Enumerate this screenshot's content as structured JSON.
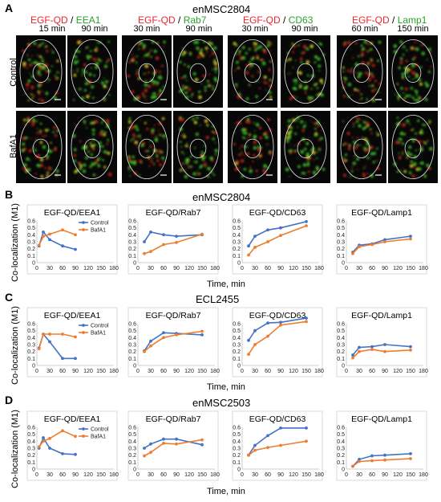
{
  "panels": {
    "A": "A",
    "B": "B",
    "C": "C",
    "D": "D"
  },
  "panelA": {
    "title": "enMSC2804",
    "row_labels": [
      "Control",
      "BafA1"
    ],
    "columns": [
      {
        "red": "EGF-QD",
        "sep": " / ",
        "green": "EEA1",
        "times": [
          "15 min",
          "90 min"
        ]
      },
      {
        "red": "EGF-QD",
        "sep": " / ",
        "green": "Rab7",
        "times": [
          "30 min",
          "90 min"
        ]
      },
      {
        "red": "EGF-QD",
        "sep": " / ",
        "green": "CD63",
        "times": [
          "30 min",
          "90 min"
        ]
      },
      {
        "red": "EGF-QD",
        "sep": " / ",
        "green": "Lamp1",
        "times": [
          "60 min",
          "150 min"
        ]
      }
    ]
  },
  "sections": [
    {
      "letter": "B",
      "title": "enMSC2804"
    },
    {
      "letter": "C",
      "title": "ECL2455"
    },
    {
      "letter": "D",
      "title": "enMSC2503"
    }
  ],
  "ylabel": "Co-localization (M1)",
  "xlabel": "Time, min",
  "colors": {
    "control": "#4472c4",
    "bafa1": "#ed7d31",
    "axis": "#bfbfbf",
    "red": "#e8262b",
    "green": "#2aa02a"
  },
  "chart_data": [
    {
      "section": "B",
      "type": "line",
      "title": "EGF-QD/EEA1",
      "xlim": [
        0,
        180
      ],
      "ylim": [
        0,
        0.6
      ],
      "xticks": [
        0,
        30,
        60,
        90,
        120,
        150,
        180
      ],
      "yticks": [
        0,
        0.1,
        0.2,
        0.3,
        0.4,
        0.5,
        0.6
      ],
      "legend": "top-right",
      "series": [
        {
          "name": "Control",
          "color": "#4472c4",
          "x": [
            5,
            15,
            30,
            60,
            90
          ],
          "y": [
            0.24,
            0.44,
            0.33,
            0.24,
            0.19
          ]
        },
        {
          "name": "BafA1",
          "color": "#ed7d31",
          "x": [
            5,
            15,
            30,
            60,
            90
          ],
          "y": [
            0.25,
            0.38,
            0.41,
            0.47,
            0.4
          ]
        }
      ]
    },
    {
      "section": "B",
      "type": "line",
      "title": "EGF-QD/Rab7",
      "xlim": [
        0,
        180
      ],
      "ylim": [
        0,
        0.6
      ],
      "xticks": [
        0,
        30,
        60,
        90,
        120,
        150,
        180
      ],
      "yticks": [
        0,
        0.1,
        0.2,
        0.3,
        0.4,
        0.5,
        0.6
      ],
      "series": [
        {
          "name": "Control",
          "color": "#4472c4",
          "x": [
            15,
            30,
            60,
            90,
            150
          ],
          "y": [
            0.3,
            0.44,
            0.4,
            0.38,
            0.4
          ]
        },
        {
          "name": "BafA1",
          "color": "#ed7d31",
          "x": [
            15,
            30,
            60,
            90,
            150
          ],
          "y": [
            0.13,
            0.16,
            0.26,
            0.29,
            0.41
          ]
        }
      ]
    },
    {
      "section": "B",
      "type": "line",
      "title": "EGF-QD/CD63",
      "xlim": [
        0,
        180
      ],
      "ylim": [
        0,
        0.6
      ],
      "xticks": [
        0,
        30,
        60,
        90,
        120,
        150,
        180
      ],
      "yticks": [
        0,
        0.1,
        0.2,
        0.3,
        0.4,
        0.5,
        0.6
      ],
      "series": [
        {
          "name": "Control",
          "color": "#4472c4",
          "x": [
            15,
            30,
            60,
            90,
            150
          ],
          "y": [
            0.24,
            0.38,
            0.47,
            0.5,
            0.59
          ]
        },
        {
          "name": "BafA1",
          "color": "#ed7d31",
          "x": [
            15,
            30,
            60,
            90,
            150
          ],
          "y": [
            0.11,
            0.22,
            0.3,
            0.39,
            0.53
          ]
        }
      ]
    },
    {
      "section": "B",
      "type": "line",
      "title": "EGF-QD/Lamp1",
      "xlim": [
        0,
        180
      ],
      "ylim": [
        0,
        0.6
      ],
      "xticks": [
        0,
        30,
        60,
        90,
        120,
        150,
        180
      ],
      "yticks": [
        0,
        0.1,
        0.2,
        0.3,
        0.4,
        0.5,
        0.6
      ],
      "series": [
        {
          "name": "Control",
          "color": "#4472c4",
          "x": [
            15,
            30,
            60,
            90,
            150
          ],
          "y": [
            0.15,
            0.25,
            0.27,
            0.33,
            0.38
          ]
        },
        {
          "name": "BafA1",
          "color": "#ed7d31",
          "x": [
            15,
            30,
            60,
            90,
            150
          ],
          "y": [
            0.13,
            0.23,
            0.26,
            0.3,
            0.34
          ]
        }
      ]
    },
    {
      "section": "C",
      "type": "line",
      "title": "EGF-QD/EEA1",
      "xlim": [
        0,
        180
      ],
      "ylim": [
        0,
        0.6
      ],
      "xticks": [
        0,
        30,
        60,
        90,
        120,
        150,
        180
      ],
      "yticks": [
        0,
        0.1,
        0.2,
        0.3,
        0.4,
        0.5,
        0.6
      ],
      "legend": "top-right",
      "series": [
        {
          "name": "Control",
          "color": "#4472c4",
          "x": [
            5,
            15,
            30,
            60,
            90
          ],
          "y": [
            0.25,
            0.45,
            0.34,
            0.1,
            0.1
          ]
        },
        {
          "name": "BafA1",
          "color": "#ed7d31",
          "x": [
            5,
            15,
            30,
            60,
            90
          ],
          "y": [
            0.24,
            0.45,
            0.45,
            0.45,
            0.41
          ]
        }
      ]
    },
    {
      "section": "C",
      "type": "line",
      "title": "EGF-QD/Rab7",
      "xlim": [
        0,
        180
      ],
      "ylim": [
        0,
        0.6
      ],
      "xticks": [
        0,
        30,
        60,
        90,
        120,
        150,
        180
      ],
      "yticks": [
        0,
        0.1,
        0.2,
        0.3,
        0.4,
        0.5,
        0.6
      ],
      "series": [
        {
          "name": "Control",
          "color": "#4472c4",
          "x": [
            15,
            30,
            60,
            90,
            150
          ],
          "y": [
            0.21,
            0.35,
            0.47,
            0.46,
            0.44
          ]
        },
        {
          "name": "BafA1",
          "color": "#ed7d31",
          "x": [
            15,
            30,
            60,
            90,
            150
          ],
          "y": [
            0.2,
            0.28,
            0.4,
            0.44,
            0.49
          ]
        }
      ]
    },
    {
      "section": "C",
      "type": "line",
      "title": "EGF-QD/CD63",
      "xlim": [
        0,
        180
      ],
      "ylim": [
        0,
        0.6
      ],
      "xticks": [
        0,
        30,
        60,
        90,
        120,
        150,
        180
      ],
      "yticks": [
        0,
        0.1,
        0.2,
        0.3,
        0.4,
        0.5,
        0.6
      ],
      "series": [
        {
          "name": "Control",
          "color": "#4472c4",
          "x": [
            15,
            30,
            60,
            90,
            150
          ],
          "y": [
            0.36,
            0.5,
            0.61,
            0.62,
            0.68
          ]
        },
        {
          "name": "BafA1",
          "color": "#ed7d31",
          "x": [
            15,
            30,
            60,
            90,
            150
          ],
          "y": [
            0.16,
            0.3,
            0.42,
            0.58,
            0.63
          ]
        }
      ]
    },
    {
      "section": "C",
      "type": "line",
      "title": "EGF-QD/Lamp1",
      "xlim": [
        0,
        180
      ],
      "ylim": [
        0,
        0.6
      ],
      "xticks": [
        0,
        30,
        60,
        90,
        120,
        150,
        180
      ],
      "yticks": [
        0,
        0.1,
        0.2,
        0.3,
        0.4,
        0.5,
        0.6
      ],
      "series": [
        {
          "name": "Control",
          "color": "#4472c4",
          "x": [
            15,
            30,
            60,
            90,
            150
          ],
          "y": [
            0.15,
            0.26,
            0.27,
            0.3,
            0.27
          ]
        },
        {
          "name": "BafA1",
          "color": "#ed7d31",
          "x": [
            15,
            30,
            60,
            90,
            150
          ],
          "y": [
            0.11,
            0.2,
            0.23,
            0.2,
            0.22
          ]
        }
      ]
    },
    {
      "section": "D",
      "type": "line",
      "title": "EGF-QD/EEA1",
      "xlim": [
        0,
        180
      ],
      "ylim": [
        0,
        0.6
      ],
      "xticks": [
        0,
        30,
        60,
        90,
        120,
        150,
        180
      ],
      "yticks": [
        0,
        0.1,
        0.2,
        0.3,
        0.4,
        0.5,
        0.6
      ],
      "legend": "top-right",
      "series": [
        {
          "name": "Control",
          "color": "#4472c4",
          "x": [
            5,
            15,
            30,
            60,
            90
          ],
          "y": [
            0.3,
            0.45,
            0.3,
            0.22,
            0.21
          ]
        },
        {
          "name": "BafA1",
          "color": "#ed7d31",
          "x": [
            5,
            15,
            30,
            60,
            90
          ],
          "y": [
            0.32,
            0.4,
            0.44,
            0.55,
            0.47
          ]
        }
      ]
    },
    {
      "section": "D",
      "type": "line",
      "title": "EGF-QD/Rab7",
      "xlim": [
        0,
        180
      ],
      "ylim": [
        0,
        0.6
      ],
      "xticks": [
        0,
        30,
        60,
        90,
        120,
        150,
        180
      ],
      "yticks": [
        0,
        0.1,
        0.2,
        0.3,
        0.4,
        0.5,
        0.6
      ],
      "series": [
        {
          "name": "Control",
          "color": "#4472c4",
          "x": [
            15,
            30,
            60,
            90,
            150
          ],
          "y": [
            0.3,
            0.36,
            0.43,
            0.43,
            0.35
          ]
        },
        {
          "name": "BafA1",
          "color": "#ed7d31",
          "x": [
            15,
            30,
            60,
            90,
            150
          ],
          "y": [
            0.19,
            0.24,
            0.37,
            0.36,
            0.42
          ]
        }
      ]
    },
    {
      "section": "D",
      "type": "line",
      "title": "EGF-QD/CD63",
      "xlim": [
        0,
        180
      ],
      "ylim": [
        0,
        0.6
      ],
      "xticks": [
        0,
        30,
        60,
        90,
        120,
        150,
        180
      ],
      "yticks": [
        0,
        0.1,
        0.2,
        0.3,
        0.4,
        0.5,
        0.6
      ],
      "series": [
        {
          "name": "Control",
          "color": "#4472c4",
          "x": [
            15,
            30,
            60,
            90,
            150
          ],
          "y": [
            0.2,
            0.34,
            0.48,
            0.59,
            0.59
          ]
        },
        {
          "name": "BafA1",
          "color": "#ed7d31",
          "x": [
            15,
            30,
            60,
            90,
            150
          ],
          "y": [
            0.2,
            0.27,
            0.31,
            0.34,
            0.4
          ]
        }
      ]
    },
    {
      "section": "D",
      "type": "line",
      "title": "EGF-QD/Lamp1",
      "xlim": [
        0,
        180
      ],
      "ylim": [
        0,
        0.6
      ],
      "xticks": [
        0,
        30,
        60,
        90,
        120,
        150,
        180
      ],
      "yticks": [
        0,
        0.1,
        0.2,
        0.3,
        0.4,
        0.5,
        0.6
      ],
      "series": [
        {
          "name": "Control",
          "color": "#4472c4",
          "x": [
            15,
            30,
            60,
            90,
            150
          ],
          "y": [
            0.04,
            0.14,
            0.19,
            0.2,
            0.22
          ]
        },
        {
          "name": "BafA1",
          "color": "#ed7d31",
          "x": [
            15,
            30,
            60,
            90,
            150
          ],
          "y": [
            0.04,
            0.11,
            0.12,
            0.13,
            0.15
          ]
        }
      ]
    }
  ]
}
